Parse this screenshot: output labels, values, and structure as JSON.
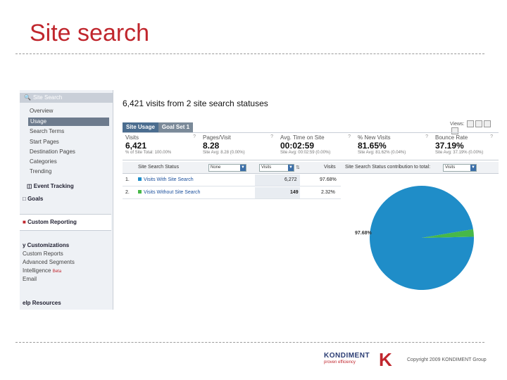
{
  "slide": {
    "title": "Site search",
    "copyright": "Copyright 2009 KONDIMENT Group"
  },
  "logo": {
    "name": "KONDIMENT",
    "tagline": "proven efficiency",
    "mark": "K"
  },
  "sidebar": {
    "header": "Site Search",
    "items": [
      "Overview",
      "Usage",
      "Search Terms",
      "Start Pages",
      "Destination Pages",
      "Categories",
      "Trending"
    ],
    "active_index": 1,
    "event_tracking": "Event Tracking",
    "goals": "Goals",
    "custom_reporting": "Custom Reporting",
    "customizations": {
      "title": "y Customizations",
      "items": [
        "Custom Reports",
        "Advanced Segments",
        "Intelligence",
        "Email"
      ],
      "beta": "Beta"
    },
    "help": "elp Resources"
  },
  "main": {
    "title": "6,421 visits from 2 site search statuses",
    "tabs": [
      "Site Usage",
      "Goal Set 1"
    ],
    "views_label": "Views:",
    "stats": [
      {
        "label": "Visits",
        "value": "6,421",
        "sub": "% of Site Total: 100.00%"
      },
      {
        "label": "Pages/Visit",
        "value": "8.28",
        "sub": "Site Avg: 8.28 (0.00%)"
      },
      {
        "label": "Avg. Time on Site",
        "value": "00:02:59",
        "sub": "Site Avg: 00:02:59 (0.00%)"
      },
      {
        "label": "% New Visits",
        "value": "81.65%",
        "sub": "Site Avg: 81.62% (0.04%)"
      },
      {
        "label": "Bounce Rate",
        "value": "37.19%",
        "sub": "Site Avg: 37.19% (0.00%)"
      }
    ],
    "table": {
      "dimension": "Site Search Status",
      "none_select": "None",
      "metric_select": "Visits",
      "visits_col": "Visits",
      "contrib_col": "Site Search Status contribution to total:",
      "contrib_select": "Visits",
      "rows": [
        {
          "index": "1.",
          "name": "Visits With Site Search",
          "visits": "6,272",
          "pct": "97.68%",
          "color": "#1f8dc8"
        },
        {
          "index": "2.",
          "name": "Visits Without Site Search",
          "visits": "149",
          "pct": "2.32%",
          "color": "#47b848"
        }
      ]
    }
  },
  "chart_data": {
    "type": "pie",
    "categories": [
      "Visits With Site Search",
      "Visits Without Site Search"
    ],
    "values": [
      97.68,
      2.32
    ],
    "colors": [
      "#1f8dc8",
      "#47b848"
    ],
    "data_labels": [
      "97.68%"
    ]
  }
}
